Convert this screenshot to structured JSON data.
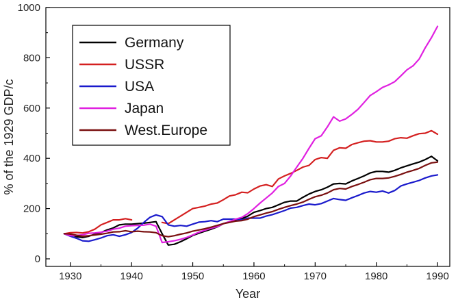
{
  "chart_data": {
    "type": "line",
    "title": "",
    "xlabel": "Year",
    "ylabel": "% of the 1929 GDP/c",
    "xlim": [
      1926,
      1992
    ],
    "ylim": [
      -30,
      1000
    ],
    "x_ticks": [
      1930,
      1940,
      1950,
      1960,
      1970,
      1980,
      1990
    ],
    "y_ticks": [
      0,
      200,
      400,
      600,
      800,
      1000
    ],
    "x_tick_labels": [
      "1930",
      "1940",
      "1950",
      "1960",
      "1970",
      "1980",
      "1990"
    ],
    "y_tick_labels": [
      "0",
      "200",
      "400",
      "600",
      "800",
      "1000"
    ],
    "grid": false,
    "legend_position": "top-left",
    "series": [
      {
        "name": "Germany",
        "color": "#000000",
        "points": [
          [
            1929,
            100
          ],
          [
            1930,
            98
          ],
          [
            1931,
            88
          ],
          [
            1932,
            85
          ],
          [
            1933,
            90
          ],
          [
            1934,
            98
          ],
          [
            1935,
            105
          ],
          [
            1936,
            115
          ],
          [
            1937,
            123
          ],
          [
            1938,
            135
          ],
          [
            1939,
            138
          ],
          [
            1940,
            138
          ],
          [
            1941,
            140
          ],
          [
            1942,
            142
          ],
          [
            1943,
            145
          ],
          [
            1944,
            148
          ],
          [
            1945,
            100
          ],
          [
            1946,
            55
          ],
          [
            1947,
            58
          ],
          [
            1948,
            68
          ],
          [
            1949,
            80
          ],
          [
            1950,
            93
          ],
          [
            1951,
            102
          ],
          [
            1952,
            110
          ],
          [
            1953,
            118
          ],
          [
            1954,
            127
          ],
          [
            1955,
            140
          ],
          [
            1956,
            148
          ],
          [
            1957,
            155
          ],
          [
            1958,
            160
          ],
          [
            1959,
            170
          ],
          [
            1960,
            185
          ],
          [
            1961,
            192
          ],
          [
            1962,
            200
          ],
          [
            1963,
            205
          ],
          [
            1964,
            215
          ],
          [
            1965,
            225
          ],
          [
            1966,
            230
          ],
          [
            1967,
            230
          ],
          [
            1968,
            245
          ],
          [
            1969,
            258
          ],
          [
            1970,
            268
          ],
          [
            1971,
            275
          ],
          [
            1972,
            285
          ],
          [
            1973,
            298
          ],
          [
            1974,
            300
          ],
          [
            1975,
            298
          ],
          [
            1976,
            310
          ],
          [
            1977,
            320
          ],
          [
            1978,
            330
          ],
          [
            1979,
            342
          ],
          [
            1980,
            348
          ],
          [
            1981,
            348
          ],
          [
            1982,
            345
          ],
          [
            1983,
            352
          ],
          [
            1984,
            362
          ],
          [
            1985,
            370
          ],
          [
            1986,
            378
          ],
          [
            1987,
            385
          ],
          [
            1988,
            395
          ],
          [
            1989,
            408
          ],
          [
            1990,
            390
          ]
        ]
      },
      {
        "name": "USSR",
        "color": "#d42020",
        "points": [
          [
            1929,
            100
          ],
          [
            1930,
            104
          ],
          [
            1931,
            105
          ],
          [
            1932,
            103
          ],
          [
            1933,
            108
          ],
          [
            1934,
            118
          ],
          [
            1935,
            135
          ],
          [
            1936,
            145
          ],
          [
            1937,
            155
          ],
          [
            1938,
            155
          ],
          [
            1939,
            160
          ],
          [
            1940,
            155
          ],
          [
            1945,
            145
          ],
          [
            1946,
            140
          ],
          [
            1947,
            155
          ],
          [
            1948,
            170
          ],
          [
            1949,
            185
          ],
          [
            1950,
            200
          ],
          [
            1951,
            205
          ],
          [
            1952,
            210
          ],
          [
            1953,
            218
          ],
          [
            1954,
            222
          ],
          [
            1955,
            235
          ],
          [
            1956,
            250
          ],
          [
            1957,
            255
          ],
          [
            1958,
            265
          ],
          [
            1959,
            263
          ],
          [
            1960,
            278
          ],
          [
            1961,
            290
          ],
          [
            1962,
            295
          ],
          [
            1963,
            288
          ],
          [
            1964,
            318
          ],
          [
            1965,
            330
          ],
          [
            1966,
            340
          ],
          [
            1967,
            352
          ],
          [
            1968,
            365
          ],
          [
            1969,
            372
          ],
          [
            1970,
            395
          ],
          [
            1971,
            403
          ],
          [
            1972,
            400
          ],
          [
            1973,
            432
          ],
          [
            1974,
            442
          ],
          [
            1975,
            440
          ],
          [
            1976,
            455
          ],
          [
            1977,
            462
          ],
          [
            1978,
            468
          ],
          [
            1979,
            470
          ],
          [
            1980,
            465
          ],
          [
            1981,
            465
          ],
          [
            1982,
            468
          ],
          [
            1983,
            478
          ],
          [
            1984,
            482
          ],
          [
            1985,
            480
          ],
          [
            1986,
            490
          ],
          [
            1987,
            498
          ],
          [
            1988,
            500
          ],
          [
            1989,
            510
          ],
          [
            1990,
            496
          ]
        ]
      },
      {
        "name": "USA",
        "color": "#1a1acc",
        "points": [
          [
            1929,
            100
          ],
          [
            1930,
            90
          ],
          [
            1931,
            82
          ],
          [
            1932,
            72
          ],
          [
            1933,
            70
          ],
          [
            1934,
            76
          ],
          [
            1935,
            83
          ],
          [
            1936,
            92
          ],
          [
            1937,
            96
          ],
          [
            1938,
            90
          ],
          [
            1939,
            96
          ],
          [
            1940,
            105
          ],
          [
            1941,
            122
          ],
          [
            1942,
            145
          ],
          [
            1943,
            165
          ],
          [
            1944,
            175
          ],
          [
            1945,
            168
          ],
          [
            1946,
            135
          ],
          [
            1947,
            130
          ],
          [
            1948,
            133
          ],
          [
            1949,
            130
          ],
          [
            1950,
            138
          ],
          [
            1951,
            146
          ],
          [
            1952,
            148
          ],
          [
            1953,
            152
          ],
          [
            1954,
            148
          ],
          [
            1955,
            158
          ],
          [
            1956,
            158
          ],
          [
            1957,
            158
          ],
          [
            1958,
            155
          ],
          [
            1959,
            162
          ],
          [
            1960,
            162
          ],
          [
            1961,
            162
          ],
          [
            1962,
            170
          ],
          [
            1963,
            176
          ],
          [
            1964,
            184
          ],
          [
            1965,
            192
          ],
          [
            1966,
            202
          ],
          [
            1967,
            205
          ],
          [
            1968,
            212
          ],
          [
            1969,
            218
          ],
          [
            1970,
            215
          ],
          [
            1971,
            220
          ],
          [
            1972,
            230
          ],
          [
            1973,
            240
          ],
          [
            1974,
            236
          ],
          [
            1975,
            233
          ],
          [
            1976,
            243
          ],
          [
            1977,
            252
          ],
          [
            1978,
            262
          ],
          [
            1979,
            268
          ],
          [
            1980,
            265
          ],
          [
            1981,
            270
          ],
          [
            1982,
            262
          ],
          [
            1983,
            272
          ],
          [
            1984,
            290
          ],
          [
            1985,
            298
          ],
          [
            1986,
            305
          ],
          [
            1987,
            312
          ],
          [
            1988,
            322
          ],
          [
            1989,
            330
          ],
          [
            1990,
            334
          ]
        ]
      },
      {
        "name": "Japan",
        "color": "#e020e0",
        "points": [
          [
            1929,
            100
          ],
          [
            1930,
            92
          ],
          [
            1931,
            93
          ],
          [
            1932,
            96
          ],
          [
            1933,
            102
          ],
          [
            1934,
            103
          ],
          [
            1935,
            106
          ],
          [
            1936,
            110
          ],
          [
            1937,
            118
          ],
          [
            1938,
            122
          ],
          [
            1939,
            130
          ],
          [
            1940,
            132
          ],
          [
            1941,
            133
          ],
          [
            1942,
            134
          ],
          [
            1943,
            138
          ],
          [
            1944,
            130
          ],
          [
            1945,
            65
          ],
          [
            1946,
            68
          ],
          [
            1947,
            72
          ],
          [
            1948,
            78
          ],
          [
            1949,
            85
          ],
          [
            1950,
            95
          ],
          [
            1951,
            106
          ],
          [
            1952,
            114
          ],
          [
            1953,
            122
          ],
          [
            1954,
            128
          ],
          [
            1955,
            140
          ],
          [
            1956,
            148
          ],
          [
            1957,
            158
          ],
          [
            1958,
            165
          ],
          [
            1959,
            180
          ],
          [
            1960,
            200
          ],
          [
            1961,
            222
          ],
          [
            1962,
            242
          ],
          [
            1963,
            262
          ],
          [
            1964,
            288
          ],
          [
            1965,
            300
          ],
          [
            1966,
            330
          ],
          [
            1967,
            365
          ],
          [
            1968,
            400
          ],
          [
            1969,
            440
          ],
          [
            1970,
            478
          ],
          [
            1971,
            490
          ],
          [
            1972,
            525
          ],
          [
            1973,
            565
          ],
          [
            1974,
            548
          ],
          [
            1975,
            557
          ],
          [
            1976,
            575
          ],
          [
            1977,
            595
          ],
          [
            1978,
            622
          ],
          [
            1979,
            650
          ],
          [
            1980,
            665
          ],
          [
            1981,
            682
          ],
          [
            1982,
            692
          ],
          [
            1983,
            705
          ],
          [
            1984,
            728
          ],
          [
            1985,
            752
          ],
          [
            1986,
            768
          ],
          [
            1987,
            795
          ],
          [
            1988,
            840
          ],
          [
            1989,
            880
          ],
          [
            1990,
            925
          ]
        ]
      },
      {
        "name": "West.Europe",
        "color": "#7a1010",
        "points": [
          [
            1929,
            100
          ],
          [
            1930,
            99
          ],
          [
            1931,
            94
          ],
          [
            1932,
            90
          ],
          [
            1933,
            92
          ],
          [
            1934,
            95
          ],
          [
            1935,
            98
          ],
          [
            1936,
            102
          ],
          [
            1937,
            107
          ],
          [
            1938,
            108
          ],
          [
            1939,
            112
          ],
          [
            1940,
            108
          ],
          [
            1941,
            110
          ],
          [
            1942,
            108
          ],
          [
            1943,
            107
          ],
          [
            1944,
            104
          ],
          [
            1945,
            92
          ],
          [
            1946,
            88
          ],
          [
            1947,
            92
          ],
          [
            1948,
            98
          ],
          [
            1949,
            103
          ],
          [
            1950,
            110
          ],
          [
            1951,
            115
          ],
          [
            1952,
            120
          ],
          [
            1953,
            126
          ],
          [
            1954,
            133
          ],
          [
            1955,
            140
          ],
          [
            1956,
            145
          ],
          [
            1957,
            150
          ],
          [
            1958,
            152
          ],
          [
            1959,
            158
          ],
          [
            1960,
            168
          ],
          [
            1961,
            175
          ],
          [
            1962,
            182
          ],
          [
            1963,
            188
          ],
          [
            1964,
            197
          ],
          [
            1965,
            205
          ],
          [
            1966,
            212
          ],
          [
            1967,
            218
          ],
          [
            1968,
            226
          ],
          [
            1969,
            237
          ],
          [
            1970,
            247
          ],
          [
            1971,
            253
          ],
          [
            1972,
            262
          ],
          [
            1973,
            275
          ],
          [
            1974,
            280
          ],
          [
            1975,
            278
          ],
          [
            1976,
            288
          ],
          [
            1977,
            296
          ],
          [
            1978,
            305
          ],
          [
            1979,
            315
          ],
          [
            1980,
            320
          ],
          [
            1981,
            320
          ],
          [
            1982,
            322
          ],
          [
            1983,
            328
          ],
          [
            1984,
            336
          ],
          [
            1985,
            345
          ],
          [
            1986,
            352
          ],
          [
            1987,
            360
          ],
          [
            1988,
            372
          ],
          [
            1989,
            382
          ],
          [
            1990,
            385
          ]
        ]
      }
    ]
  }
}
